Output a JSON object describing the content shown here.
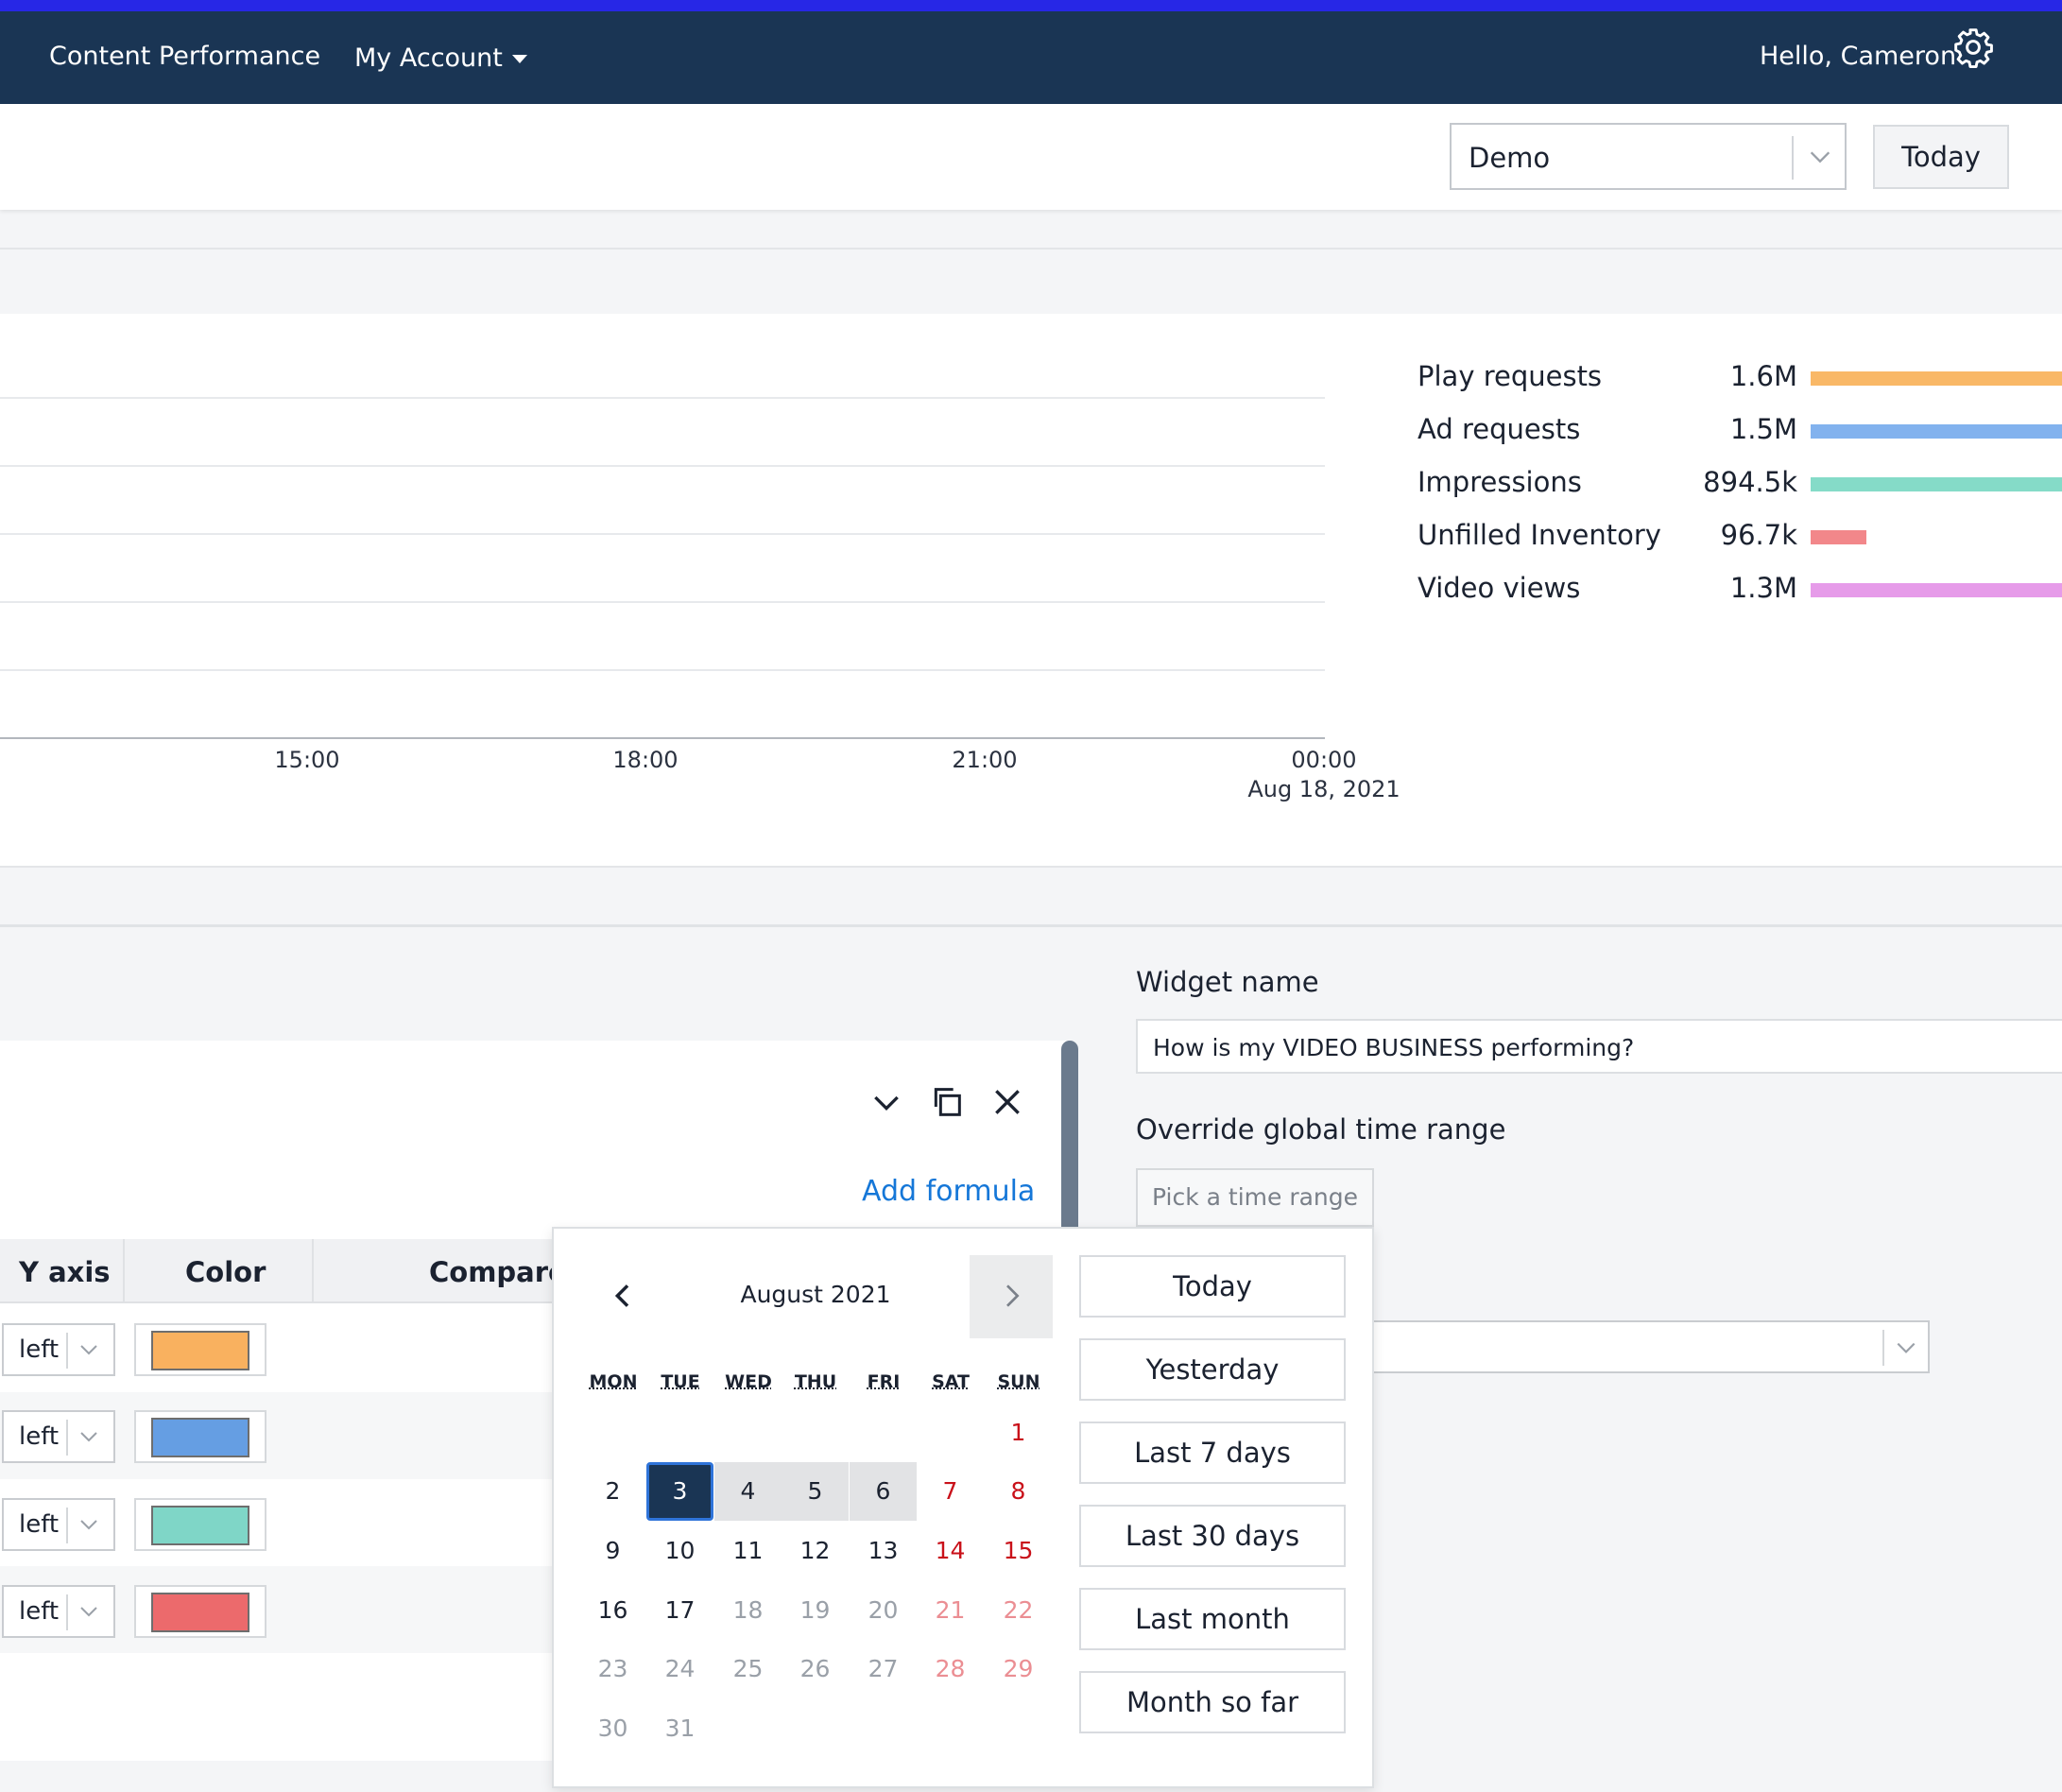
{
  "nav": {
    "title": "Content Performance",
    "account": "My Account",
    "greeting": "Hello, Cameron"
  },
  "toolbar": {
    "dashboard_select": "Demo",
    "today_button": "Today"
  },
  "chart_data": {
    "type": "line",
    "x_ticks": [
      "15:00",
      "18:00",
      "21:00",
      "00:00"
    ],
    "x_subtick": "Aug 18, 2021",
    "legend": [
      {
        "name": "Play requests",
        "value_label": "1.6M",
        "value": 1600000,
        "color": "#f9b867"
      },
      {
        "name": "Ad requests",
        "value_label": "1.5M",
        "value": 1500000,
        "color": "#82b2ee"
      },
      {
        "name": "Impressions",
        "value_label": "894.5k",
        "value": 894500,
        "color": "#85dbc8"
      },
      {
        "name": "Unfilled Inventory",
        "value_label": "96.7k",
        "value": 96700,
        "color": "#f2878a"
      },
      {
        "name": "Video views",
        "value_label": "1.3M",
        "value": 1300000,
        "color": "#e69be9"
      }
    ],
    "grid": true
  },
  "metric_editor": {
    "add_formula": "Add formula",
    "headers": {
      "y_axis": "Y axis",
      "color": "Color",
      "compare": "Compare t"
    },
    "rows": [
      {
        "axis": "left",
        "color": "#f9b15f"
      },
      {
        "axis": "left",
        "color": "#659ee3"
      },
      {
        "axis": "left",
        "color": "#7fd6c7"
      },
      {
        "axis": "left",
        "color": "#ec6a6c"
      }
    ]
  },
  "widget_panel": {
    "name_label": "Widget name",
    "name_value": "How is my VIDEO BUSINESS performing?",
    "override_label": "Override global time range",
    "pick_range": "Pick a time range"
  },
  "datepicker": {
    "month": "August 2021",
    "weekdays": [
      "MON",
      "TUE",
      "WED",
      "THU",
      "FRI",
      "SAT",
      "SUN"
    ],
    "selected_day": 3,
    "range_days": [
      4,
      5,
      6
    ],
    "today_day": 17,
    "days_in_month": 31,
    "first_weekday_index": 6,
    "presets": [
      "Today",
      "Yesterday",
      "Last 7 days",
      "Last 30 days",
      "Last month",
      "Month so far"
    ]
  }
}
